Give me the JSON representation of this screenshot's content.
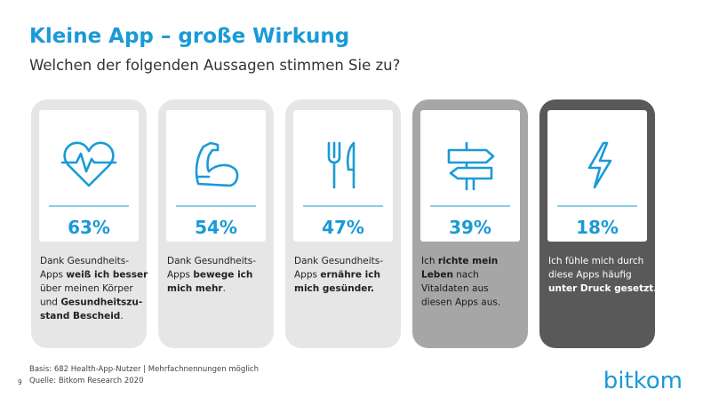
{
  "header": {
    "title": "Kleine App – große Wirkung",
    "subtitle": "Welchen der folgenden Aussagen stimmen Sie zu?"
  },
  "cards": [
    {
      "percent": "63%",
      "frame_color": "#e6e6e6",
      "text_color": "#222222",
      "lines": [
        [
          {
            "text": "Dank Gesundheits-",
            "bold": false
          }
        ],
        [
          {
            "text": "Apps ",
            "bold": false
          },
          {
            "text": "weiß ich besser",
            "bold": true
          }
        ],
        [
          {
            "text": "über meinen Körper",
            "bold": false
          }
        ],
        [
          {
            "text": "und ",
            "bold": false
          },
          {
            "text": "Gesundheitszu-",
            "bold": true
          }
        ],
        [
          {
            "text": "stand Bescheid",
            "bold": true
          },
          {
            "text": ".",
            "bold": false
          }
        ]
      ]
    },
    {
      "percent": "54%",
      "frame_color": "#e6e6e6",
      "text_color": "#222222",
      "lines": [
        [
          {
            "text": "Dank Gesundheits-",
            "bold": false
          }
        ],
        [
          {
            "text": "Apps ",
            "bold": false
          },
          {
            "text": "bewege ich",
            "bold": true
          }
        ],
        [
          {
            "text": "mich mehr",
            "bold": true
          },
          {
            "text": ".",
            "bold": false
          }
        ]
      ]
    },
    {
      "percent": "47%",
      "frame_color": "#e6e6e6",
      "text_color": "#222222",
      "lines": [
        [
          {
            "text": "Dank Gesundheits-",
            "bold": false
          }
        ],
        [
          {
            "text": "Apps ",
            "bold": false
          },
          {
            "text": "ernähre ich",
            "bold": true
          }
        ],
        [
          {
            "text": "mich gesünder.",
            "bold": true
          }
        ]
      ]
    },
    {
      "percent": "39%",
      "frame_color": "#a6a6a6",
      "text_color": "#1a1a1a",
      "lines": [
        [
          {
            "text": "Ich ",
            "bold": false
          },
          {
            "text": "richte mein",
            "bold": true
          }
        ],
        [
          {
            "text": "Leben",
            "bold": true
          },
          {
            "text": " nach",
            "bold": false
          }
        ],
        [
          {
            "text": "Vitaldaten aus",
            "bold": false
          }
        ],
        [
          {
            "text": "diesen Apps aus.",
            "bold": false
          }
        ]
      ]
    },
    {
      "percent": "18%",
      "frame_color": "#595959",
      "text_color": "#ffffff",
      "lines": [
        [
          {
            "text": "Ich fühle mich durch",
            "bold": false
          }
        ],
        [
          {
            "text": "diese Apps häufig",
            "bold": false
          }
        ],
        [
          {
            "text": "unter Druck gesetzt.",
            "bold": true
          }
        ]
      ]
    }
  ],
  "footer": {
    "basis": "Basis: 682 Health-App-Nutzer | Mehrfachnennungen möglich",
    "source": "Quelle: Bitkom Research 2020",
    "page": "9",
    "logo": "bitkom"
  }
}
